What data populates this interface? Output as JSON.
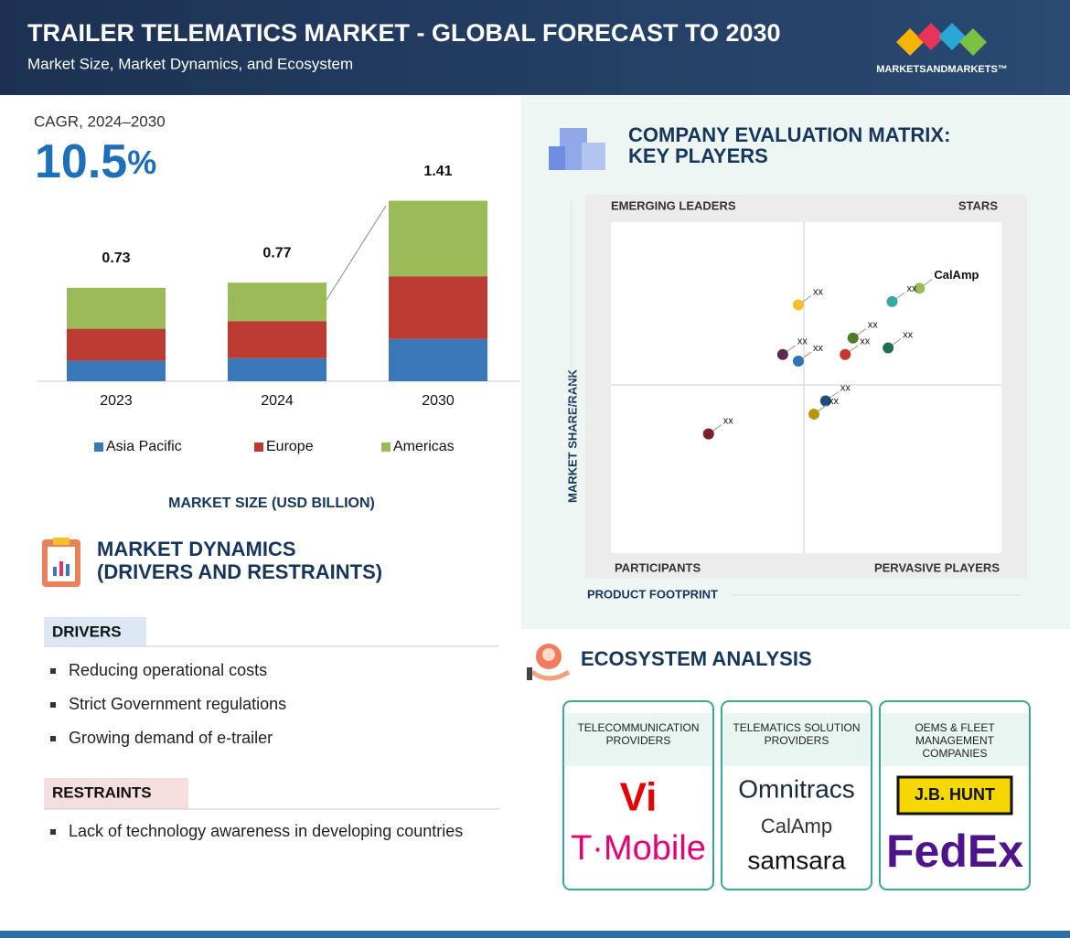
{
  "header": {
    "title": "TRAILER TELEMATICS MARKET - GLOBAL FORECAST TO 2030",
    "subtitle": "Market Size, Market Dynamics, and Ecosystem",
    "brand": "MARKETSANDMARKETS™"
  },
  "cagr": {
    "label": "CAGR, 2024–2030",
    "value": "10.5",
    "unit": "%"
  },
  "chart_data": {
    "type": "bar",
    "stacked": true,
    "title": "MARKET SIZE (USD BILLION)",
    "categories": [
      "2023",
      "2024",
      "2030"
    ],
    "series": [
      {
        "name": "Asia Pacific",
        "color": "#3a78b8",
        "values": [
          0.16,
          0.18,
          0.33
        ]
      },
      {
        "name": "Europe",
        "color": "#bb3b33",
        "values": [
          0.25,
          0.29,
          0.49
        ]
      },
      {
        "name": "Americas",
        "color": "#9bbb59",
        "values": [
          0.32,
          0.3,
          0.59
        ]
      }
    ],
    "totals": [
      0.73,
      0.77,
      1.41
    ]
  },
  "dynamics": {
    "title": "MARKET DYNAMICS",
    "subtitle": "(DRIVERS AND RESTRAINTS)",
    "drivers_label": "DRIVERS",
    "drivers": [
      "Reducing operational costs",
      "Strict Government regulations",
      "Growing demand of e-trailer"
    ],
    "restraints_label": "RESTRAINTS",
    "restraints": [
      "Lack of technology awareness in developing countries"
    ]
  },
  "matrix": {
    "type": "scatter",
    "title": "COMPANY EVALUATION MATRIX:",
    "subtitle": "KEY PLAYERS",
    "quadrants": [
      "EMERGING LEADERS",
      "STARS",
      "PARTICIPANTS",
      "PERVASIVE PLAYERS"
    ],
    "x_label": "PRODUCT FOOTPRINT",
    "y_label": "MARKET SHARE/RANK",
    "xlim": [
      0,
      100
    ],
    "ylim": [
      0,
      100
    ],
    "points": [
      {
        "label": "CalAmp",
        "color": "#9bbb59",
        "x": 79,
        "y": 80
      },
      {
        "label": "xx",
        "color": "#3aa8a0",
        "x": 72,
        "y": 76
      },
      {
        "label": "xx",
        "color": "#f5c02a",
        "x": 48,
        "y": 75
      },
      {
        "label": "xx",
        "color": "#4f7a28",
        "x": 62,
        "y": 65
      },
      {
        "label": "xx",
        "color": "#1f6e5a",
        "x": 71,
        "y": 62
      },
      {
        "label": "xx",
        "color": "#c0392b",
        "x": 60,
        "y": 60
      },
      {
        "label": "xx",
        "color": "#5b2a4e",
        "x": 44,
        "y": 60
      },
      {
        "label": "xx",
        "color": "#2e75b6",
        "x": 48,
        "y": 58
      },
      {
        "label": "xx",
        "color": "#1f4e79",
        "x": 55,
        "y": 46
      },
      {
        "label": "xx",
        "color": "#b8960c",
        "x": 52,
        "y": 42
      },
      {
        "label": "xx",
        "color": "#7b1f2a",
        "x": 25,
        "y": 36
      }
    ]
  },
  "ecosystem": {
    "title": "ECOSYSTEM ANALYSIS",
    "columns": [
      {
        "header": [
          "TELECOMMUNICATION",
          "PROVIDERS"
        ],
        "logos": [
          "Vi",
          "T·Mobile"
        ]
      },
      {
        "header": [
          "TELEMATICS SOLUTION",
          "PROVIDERS"
        ],
        "logos": [
          "Omnitracs",
          "CalAmp",
          "samsara"
        ]
      },
      {
        "header": [
          "OEMS & FLEET",
          "MANAGEMENT",
          "COMPANIES"
        ],
        "logos": [
          "J.B. HUNT",
          "FedEx"
        ]
      }
    ]
  }
}
